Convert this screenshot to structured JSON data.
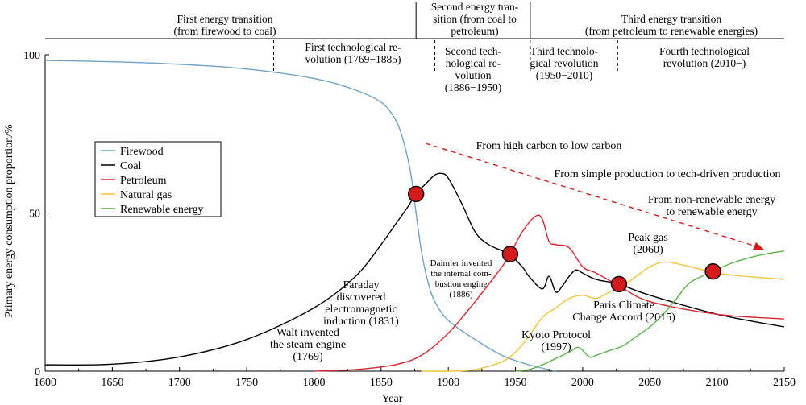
{
  "chart_data": {
    "type": "line",
    "xlabel": "Year",
    "ylabel": "Primary energy consumption proportion/%",
    "xlim": [
      1600,
      2150
    ],
    "ylim": [
      0,
      100
    ],
    "xticks": [
      1600,
      1650,
      1700,
      1750,
      1800,
      1850,
      1900,
      1950,
      2000,
      2050,
      2100,
      2150
    ],
    "yticks": [
      0,
      50,
      100
    ],
    "grid": false,
    "legend_position": "left",
    "series": [
      {
        "name": "Firewood",
        "color": "#6fa3c8",
        "x": [
          1600,
          1650,
          1700,
          1750,
          1800,
          1830,
          1850,
          1860,
          1865,
          1870,
          1873,
          1876,
          1880,
          1885,
          1890,
          1900,
          1920,
          1940,
          1960,
          1980
        ],
        "y": [
          98.2,
          97.8,
          97,
          95.5,
          92.5,
          89,
          85,
          80,
          75,
          67,
          60,
          50,
          38,
          28,
          22,
          16,
          10,
          5,
          2,
          0
        ]
      },
      {
        "name": "Coal",
        "color": "#000000",
        "x": [
          1600,
          1650,
          1700,
          1750,
          1800,
          1831,
          1850,
          1860,
          1870,
          1876,
          1885,
          1890,
          1895,
          1900,
          1910,
          1920,
          1930,
          1945,
          1955,
          1960,
          1970,
          1975,
          1980,
          1985,
          1990,
          1995,
          2000,
          2010,
          2027,
          2050,
          2100,
          2150
        ],
        "y": [
          2,
          2.2,
          4.5,
          10,
          20,
          30,
          40,
          46,
          52,
          56,
          60,
          62,
          62.5,
          61,
          53,
          44,
          40,
          37,
          33,
          30,
          26,
          30,
          25,
          27,
          30,
          32,
          31,
          29,
          27.5,
          24,
          18,
          14
        ]
      },
      {
        "name": "Petroleum",
        "color": "#d62630",
        "x": [
          1800,
          1830,
          1860,
          1880,
          1900,
          1920,
          1940,
          1946,
          1955,
          1965,
          1970,
          1975,
          1980,
          1990,
          2000,
          2010,
          2027,
          2050,
          2100,
          2150
        ],
        "y": [
          0,
          0.5,
          2,
          5,
          12,
          22,
          33,
          37,
          44,
          49,
          48,
          41,
          40,
          39,
          33,
          31,
          27,
          22,
          18,
          16.5
        ]
      },
      {
        "name": "Natural gas",
        "color": "#f2c338",
        "x": [
          1880,
          1900,
          1920,
          1940,
          1950,
          1960,
          1970,
          1980,
          1990,
          2000,
          2010,
          2020,
          2030,
          2040,
          2050,
          2060,
          2070,
          2080,
          2100,
          2120,
          2150
        ],
        "y": [
          0,
          0,
          0.5,
          3,
          6,
          11,
          17,
          20,
          23,
          24,
          23,
          25,
          27,
          30,
          33,
          34.5,
          34,
          33,
          31,
          30,
          29
        ]
      },
      {
        "name": "Renewable energy",
        "color": "#58b447",
        "x": [
          1950,
          1960,
          1970,
          1980,
          1990,
          1997,
          2005,
          2010,
          2020,
          2030,
          2040,
          2050,
          2060,
          2070,
          2080,
          2097,
          2110,
          2130,
          2150
        ],
        "y": [
          0,
          0.5,
          2,
          4,
          6,
          7.5,
          4.5,
          5,
          6.5,
          8,
          11,
          14,
          18,
          23,
          28,
          31.5,
          34,
          36.5,
          38
        ]
      }
    ],
    "markers": [
      {
        "x": 1876,
        "y": 56
      },
      {
        "x": 1946,
        "y": 37
      },
      {
        "x": 2027,
        "y": 27.5
      },
      {
        "x": 2097,
        "y": 31.5
      }
    ],
    "header": {
      "transitions": [
        {
          "lines": [
            "First energy transition",
            "(from firewood to coal)"
          ],
          "x": 1738
        },
        {
          "lines": [
            "Second energy tran-",
            "sition (from coal to",
            "petroleum)"
          ],
          "x": 1920
        },
        {
          "lines": [
            "Third energy transition",
            "(from petroleum to renewable energies)"
          ],
          "x": 2060
        }
      ],
      "revolutions": [
        {
          "lines": [
            "First technological re-",
            "volution (1769−1885)"
          ],
          "x": 1820
        },
        {
          "lines": [
            "Second tech-",
            "nological re-",
            "volution",
            "(1886−1950)"
          ],
          "x": 1918
        },
        {
          "lines": [
            "Third technolo-",
            "gical revolution",
            "(1950−2010)"
          ],
          "x": 1985
        },
        {
          "lines": [
            "Fourth technological",
            "revolution (2010−)"
          ],
          "x": 2082
        }
      ]
    },
    "annotations": [
      {
        "id": "walt",
        "lines": [
          "Walt invented",
          "the steam engine",
          "(1769)"
        ]
      },
      {
        "id": "faraday",
        "lines": [
          "Faraday",
          "discovered",
          "electromagnetic",
          "induction (1831)"
        ]
      },
      {
        "id": "daimler",
        "lines": [
          "Daimler invented",
          "the internal com-",
          "bustion engine",
          "(1886)"
        ]
      },
      {
        "id": "kyoto",
        "lines": [
          "Kyoto Protocol",
          "(1997)"
        ]
      },
      {
        "id": "paris",
        "lines": [
          "Paris Climate",
          "Change Accord (2015)"
        ]
      },
      {
        "id": "peakgas",
        "lines": [
          "Peak gas",
          "(2060)"
        ]
      },
      {
        "id": "trend1",
        "lines": [
          "From high carbon to low carbon"
        ]
      },
      {
        "id": "trend2",
        "lines": [
          "From simple production to tech-driven production"
        ]
      },
      {
        "id": "trend3",
        "lines": [
          "From non-renewable energy",
          "to renewable energy"
        ]
      }
    ]
  }
}
